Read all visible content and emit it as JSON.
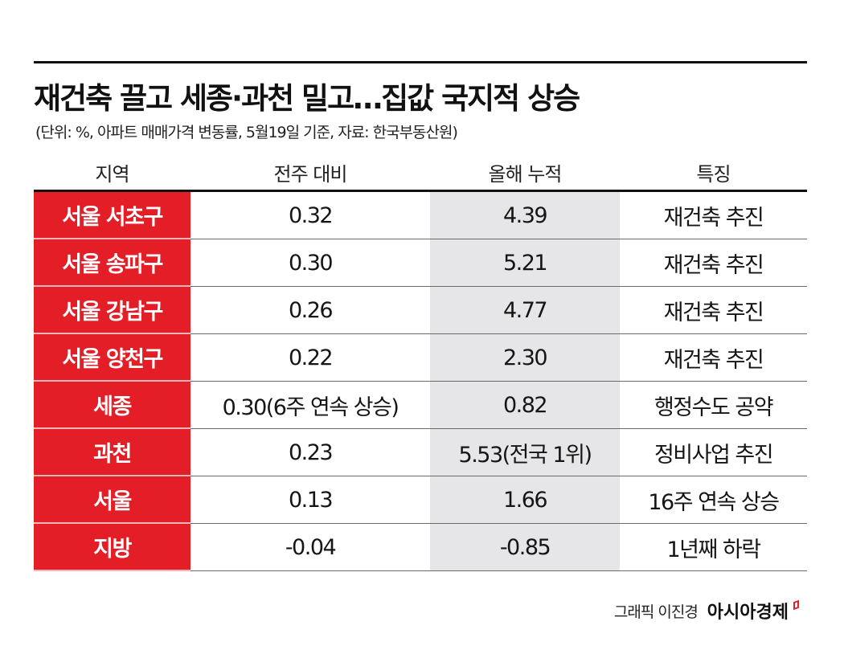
{
  "header": {
    "title": "재건축 끌고 세종·과천 밀고…집값 국지적 상승",
    "subtitle": "(단위: %, 아파트 매매가격 변동률, 5월19일 기준, 자료: 한국부동산원)"
  },
  "table": {
    "columns": [
      "지역",
      "전주 대비",
      "올해 누적",
      "특징"
    ],
    "rows": [
      {
        "region": "서울 서초구",
        "weekly": "0.32",
        "ytd": "4.39",
        "feature": "재건축 추진"
      },
      {
        "region": "서울 송파구",
        "weekly": "0.30",
        "ytd": "5.21",
        "feature": "재건축 추진"
      },
      {
        "region": "서울 강남구",
        "weekly": "0.26",
        "ytd": "4.77",
        "feature": "재건축 추진"
      },
      {
        "region": "서울 양천구",
        "weekly": "0.22",
        "ytd": "2.30",
        "feature": "재건축 추진"
      },
      {
        "region": "세종",
        "weekly": "0.30(6주 연속 상승)",
        "ytd": "0.82",
        "feature": "행정수도 공약"
      },
      {
        "region": "과천",
        "weekly": "0.23",
        "ytd": "5.53(전국 1위)",
        "feature": "정비사업 추진"
      },
      {
        "region": "서울",
        "weekly": "0.13",
        "ytd": "1.66",
        "feature": "16주 연속 상승"
      },
      {
        "region": "지방",
        "weekly": "-0.04",
        "ytd": "-0.85",
        "feature": "1년째 하락"
      }
    ]
  },
  "footer": {
    "credit": "그래픽 이진경",
    "brand": "아시아경제"
  },
  "colors": {
    "accent_red": "#e41e26",
    "ytd_column_bg": "#e6e6e8",
    "rule": "#111111"
  }
}
